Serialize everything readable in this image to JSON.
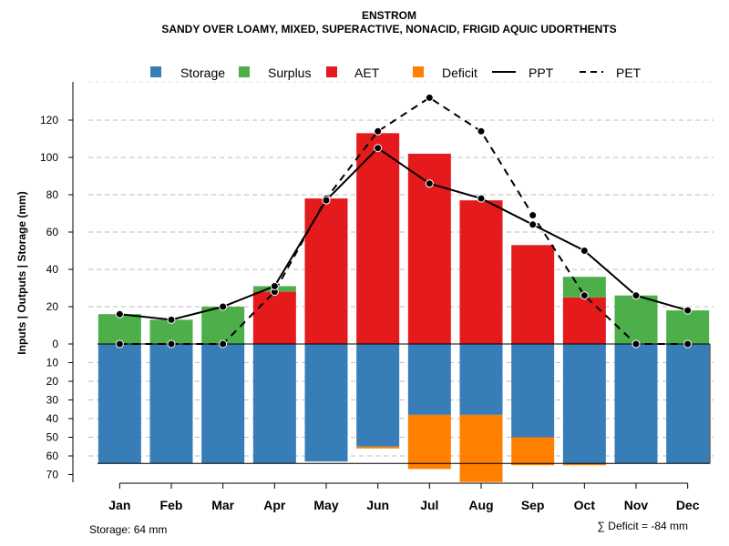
{
  "chart_data": {
    "type": "bar",
    "title": "ENSTROM",
    "subtitle": "SANDY OVER LOAMY, MIXED, SUPERACTIVE, NONACID, FRIGID AQUIC UDORTHENTS",
    "ylabel": "Inputs | Outputs | Storage    (mm)",
    "categories": [
      "Jan",
      "Feb",
      "Mar",
      "Apr",
      "May",
      "Jun",
      "Jul",
      "Aug",
      "Sep",
      "Oct",
      "Nov",
      "Dec"
    ],
    "ylim_upper": [
      0,
      140
    ],
    "ylim_lower": [
      0,
      70
    ],
    "upper_ticks": [
      "0",
      "20",
      "40",
      "60",
      "80",
      "100",
      "120"
    ],
    "lower_ticks": [
      "10",
      "20",
      "30",
      "40",
      "50",
      "60",
      "70"
    ],
    "legend": {
      "storage": "Storage",
      "surplus": "Surplus",
      "aet": "AET",
      "deficit": "Deficit",
      "ppt": "PPT",
      "pet": "PET"
    },
    "colors": {
      "storage": "#377eb8",
      "surplus": "#4daf4a",
      "aet": "#e41a1c",
      "deficit": "#ff7f00",
      "line": "#000000"
    },
    "series": [
      {
        "name": "AET",
        "values": [
          0,
          0,
          0,
          28,
          78,
          113,
          102,
          77,
          53,
          25,
          0,
          0
        ]
      },
      {
        "name": "Surplus",
        "values": [
          16,
          13,
          20,
          3,
          0,
          0,
          0,
          0,
          0,
          11,
          26,
          18
        ]
      },
      {
        "name": "Storage",
        "values": [
          64,
          64,
          64,
          64,
          63,
          55,
          38,
          38,
          50,
          64,
          64,
          64
        ]
      },
      {
        "name": "Deficit",
        "values": [
          0,
          0,
          0,
          0,
          0,
          1,
          29,
          36,
          15,
          1,
          0,
          0
        ]
      },
      {
        "name": "PPT",
        "values": [
          16,
          13,
          20,
          31,
          77,
          105,
          86,
          78,
          64,
          50,
          26,
          18
        ]
      },
      {
        "name": "PET",
        "values": [
          0,
          0,
          0,
          28,
          78,
          114,
          132,
          114,
          69,
          26,
          0,
          0
        ]
      }
    ],
    "storage_capacity": 64,
    "storage_note": "Storage: 64 mm",
    "deficit_note": "∑ Deficit = -84 mm"
  }
}
